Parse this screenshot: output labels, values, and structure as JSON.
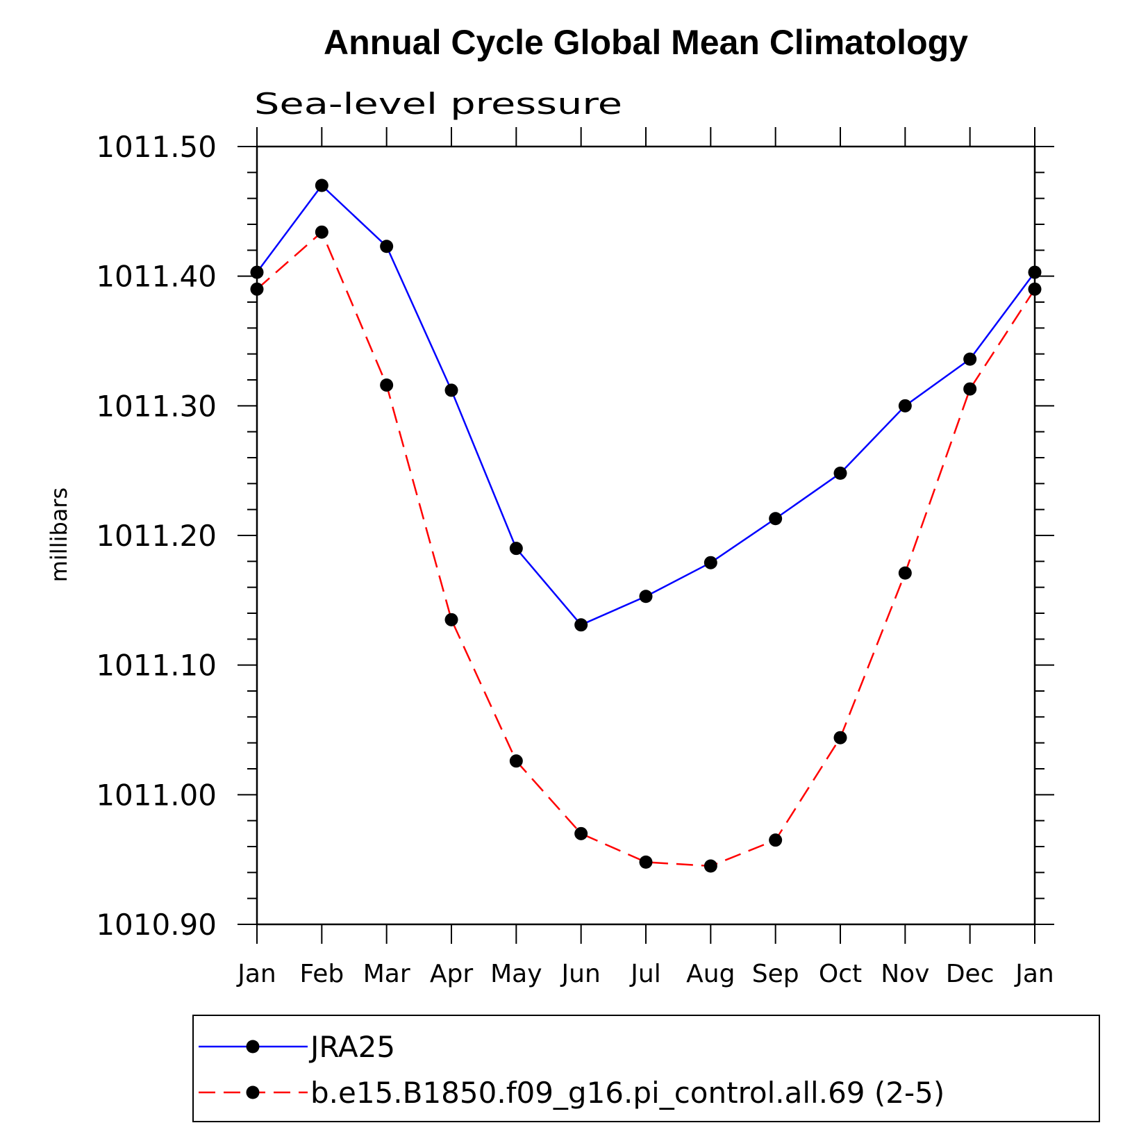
{
  "chart_data": {
    "type": "line",
    "title": "Annual Cycle Global Mean Climatology",
    "subtitle": "Sea-level pressure",
    "ylabel": "millibars",
    "xlabel": "",
    "categories": [
      "Jan",
      "Feb",
      "Mar",
      "Apr",
      "May",
      "Jun",
      "Jul",
      "Aug",
      "Sep",
      "Oct",
      "Nov",
      "Dec",
      "Jan"
    ],
    "ylim": [
      1010.9,
      1011.5
    ],
    "yticks": [
      1010.9,
      1011.0,
      1011.1,
      1011.2,
      1011.3,
      1011.4,
      1011.5
    ],
    "ytick_labels": [
      "1010.90",
      "1011.00",
      "1011.10",
      "1011.20",
      "1011.30",
      "1011.40",
      "1011.50"
    ],
    "grid": false,
    "legend_position": "bottom",
    "series": [
      {
        "name": "JRA25",
        "color": "#0000ff",
        "dash": "solid",
        "values": [
          1011.403,
          1011.47,
          1011.423,
          1011.312,
          1011.19,
          1011.131,
          1011.153,
          1011.179,
          1011.213,
          1011.248,
          1011.3,
          1011.336,
          1011.403
        ]
      },
      {
        "name": "b.e15.B1850.f09_g16.pi_control.all.69 (2-5)",
        "color": "#ff0000",
        "dash": "dashed",
        "values": [
          1011.39,
          1011.434,
          1011.316,
          1011.135,
          1011.026,
          1010.97,
          1010.948,
          1010.945,
          1010.965,
          1011.044,
          1011.171,
          1011.313,
          1011.39
        ]
      }
    ]
  }
}
